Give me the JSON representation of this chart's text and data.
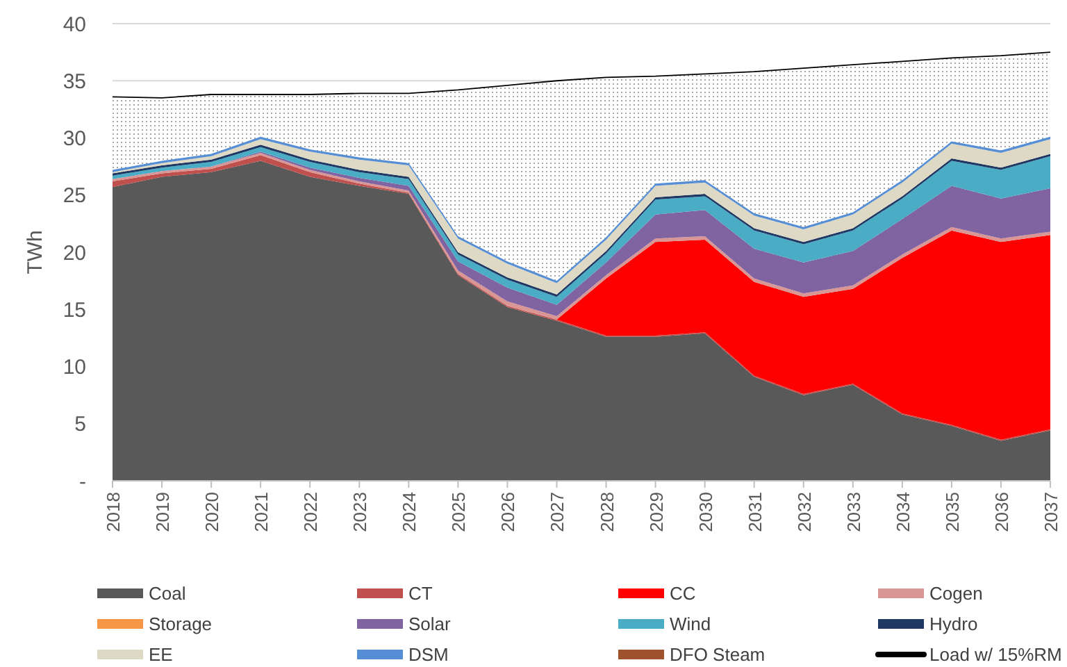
{
  "chart_data": {
    "type": "area",
    "stacked": true,
    "ylabel": "TWh",
    "categories": [
      "2018",
      "2019",
      "2020",
      "2021",
      "2022",
      "2023",
      "2024",
      "2025",
      "2026",
      "2027",
      "2028",
      "2029",
      "2030",
      "2031",
      "2032",
      "2033",
      "2034",
      "2035",
      "2036",
      "2037"
    ],
    "ylim": [
      0,
      40
    ],
    "yticks": [
      {
        "value": 0,
        "label": "-"
      },
      5,
      10,
      15,
      20,
      25,
      30,
      35,
      40
    ],
    "grid": "y",
    "legend": "bottom",
    "series": [
      {
        "name": "Coal",
        "color": "#595959",
        "values": [
          25.7,
          26.6,
          27.0,
          28.0,
          26.6,
          25.8,
          25.1,
          18.0,
          15.2,
          14.0,
          12.6,
          12.6,
          12.9,
          9.1,
          7.5,
          8.4,
          5.8,
          4.8,
          3.5,
          4.4
        ]
      },
      {
        "name": "CT",
        "color": "#c0504d",
        "values": [
          0.5,
          0.3,
          0.3,
          0.5,
          0.4,
          0.2,
          0.1,
          0.1,
          0.1,
          0.1,
          0.1,
          0.1,
          0.1,
          0.1,
          0.1,
          0.1,
          0.1,
          0.1,
          0.1,
          0.1
        ]
      },
      {
        "name": "CC",
        "color": "#ff0000",
        "values": [
          null,
          null,
          null,
          null,
          null,
          null,
          null,
          null,
          null,
          0,
          5.0,
          8.2,
          8.1,
          8.2,
          8.5,
          8.3,
          13.6,
          17.0,
          17.3,
          17.0
        ]
      },
      {
        "name": "Cogen",
        "color": "#d99694",
        "values": [
          0.2,
          0.2,
          0.2,
          0.2,
          0.2,
          0.2,
          0.2,
          0.3,
          0.4,
          0.3,
          0.3,
          0.3,
          0.3,
          0.3,
          0.3,
          0.3,
          0.3,
          0.3,
          0.3,
          0.3
        ]
      },
      {
        "name": "Storage",
        "color": "#f79646",
        "values": [
          null,
          null,
          null,
          null,
          null,
          null,
          null,
          null,
          null,
          null,
          null,
          null,
          null,
          null,
          null,
          null,
          null,
          null,
          null,
          null
        ]
      },
      {
        "name": "Solar",
        "color": "#8064a2",
        "values": [
          0,
          0,
          0,
          0.1,
          0.2,
          0.3,
          0.4,
          0.8,
          1.2,
          1.0,
          1.1,
          2.1,
          2.3,
          2.6,
          2.7,
          3.0,
          3.1,
          3.6,
          3.5,
          3.8
        ]
      },
      {
        "name": "Wind",
        "color": "#4bacc6",
        "values": [
          0.3,
          0.3,
          0.4,
          0.4,
          0.5,
          0.5,
          0.6,
          0.6,
          0.7,
          0.7,
          0.8,
          1.3,
          1.2,
          1.6,
          1.6,
          1.8,
          1.8,
          2.2,
          2.5,
          2.8
        ]
      },
      {
        "name": "Hydro",
        "color": "#1f3864",
        "values": [
          0.2,
          0.2,
          0.2,
          0.2,
          0.2,
          0.2,
          0.2,
          0.2,
          0.2,
          0.2,
          0.2,
          0.2,
          0.2,
          0.2,
          0.2,
          0.2,
          0.2,
          0.2,
          0.2,
          0.2
        ]
      },
      {
        "name": "EE",
        "color": "#ddd9c4",
        "values": [
          0.1,
          0.2,
          0.3,
          0.5,
          0.7,
          0.9,
          1.0,
          1.2,
          1.2,
          1.0,
          1.0,
          1.0,
          1.0,
          1.1,
          1.1,
          1.2,
          1.2,
          1.3,
          1.3,
          1.3
        ]
      },
      {
        "name": "DSM",
        "color": "#558ed5",
        "values": [
          0.2,
          0.2,
          0.2,
          0.2,
          0.2,
          0.2,
          0.2,
          0.2,
          0.2,
          0.2,
          0.2,
          0.2,
          0.2,
          0.2,
          0.2,
          0.2,
          0.2,
          0.2,
          0.2,
          0.2
        ]
      },
      {
        "name": "DFO Steam",
        "color": "#a0522d",
        "values": [
          null,
          null,
          null,
          null,
          null,
          null,
          null,
          null,
          null,
          null,
          null,
          null,
          null,
          null,
          null,
          null,
          null,
          null,
          null,
          null
        ]
      },
      {
        "name": "Load w/ 15%RM",
        "type": "line",
        "color": "#000000",
        "values": [
          33.6,
          33.5,
          33.8,
          33.8,
          33.8,
          33.9,
          33.9,
          34.2,
          34.6,
          35.0,
          35.3,
          35.4,
          35.6,
          35.8,
          36.1,
          36.4,
          36.7,
          37.0,
          37.2,
          37.5
        ]
      }
    ]
  }
}
